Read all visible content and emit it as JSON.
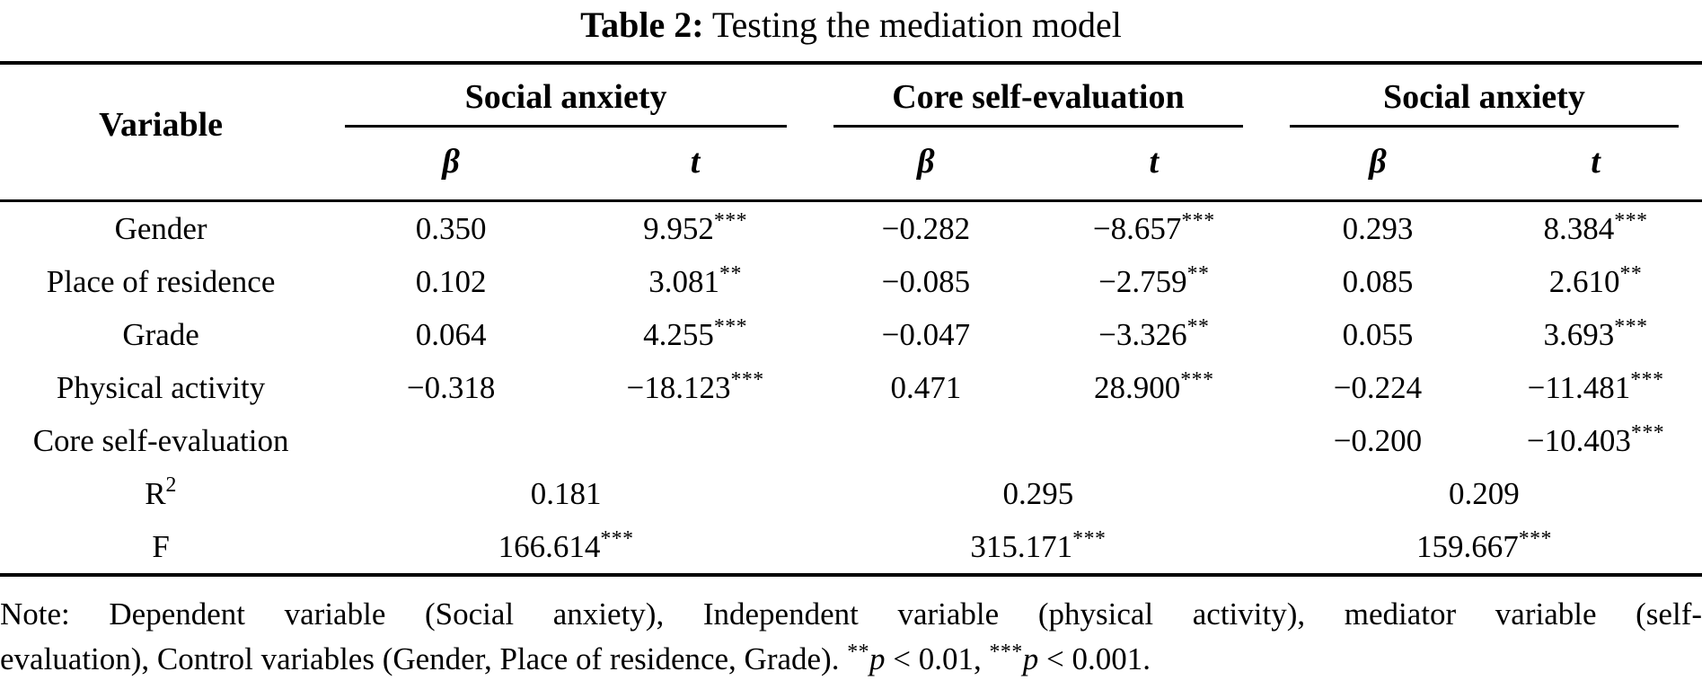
{
  "title": {
    "label": "Table 2:",
    "text": "Testing the mediation model"
  },
  "table": {
    "variable_header": "Variable",
    "groups": [
      {
        "label": "Social anxiety",
        "sub": [
          "β",
          "t"
        ]
      },
      {
        "label": "Core self-evaluation",
        "sub": [
          "β",
          "t"
        ]
      },
      {
        "label": "Social anxiety",
        "sub": [
          "β",
          "t"
        ]
      }
    ],
    "rows": [
      {
        "label": "Gender",
        "cells": [
          {
            "v": "0.350"
          },
          {
            "v": "9.952",
            "sup": "***"
          },
          {
            "v": "−0.282"
          },
          {
            "v": "−8.657",
            "sup": "***"
          },
          {
            "v": "0.293"
          },
          {
            "v": "8.384",
            "sup": "***"
          }
        ]
      },
      {
        "label": "Place of residence",
        "cells": [
          {
            "v": "0.102"
          },
          {
            "v": "3.081",
            "sup": "**"
          },
          {
            "v": "−0.085"
          },
          {
            "v": "−2.759",
            "sup": "**"
          },
          {
            "v": "0.085"
          },
          {
            "v": "2.610",
            "sup": "**"
          }
        ]
      },
      {
        "label": "Grade",
        "cells": [
          {
            "v": "0.064"
          },
          {
            "v": "4.255",
            "sup": "***"
          },
          {
            "v": "−0.047"
          },
          {
            "v": "−3.326",
            "sup": "**"
          },
          {
            "v": "0.055"
          },
          {
            "v": "3.693",
            "sup": "***"
          }
        ]
      },
      {
        "label": "Physical activity",
        "cells": [
          {
            "v": "−0.318"
          },
          {
            "v": "−18.123",
            "sup": "***"
          },
          {
            "v": "0.471"
          },
          {
            "v": "28.900",
            "sup": "***"
          },
          {
            "v": "−0.224"
          },
          {
            "v": "−11.481",
            "sup": "***"
          }
        ]
      },
      {
        "label": "Core self-evaluation",
        "cells": [
          {
            "v": ""
          },
          {
            "v": ""
          },
          {
            "v": ""
          },
          {
            "v": ""
          },
          {
            "v": "−0.200"
          },
          {
            "v": "−10.403",
            "sup": "***"
          }
        ]
      },
      {
        "label": "R",
        "label_sup": "2",
        "span_cells": [
          {
            "v": "0.181"
          },
          {
            "v": "0.295"
          },
          {
            "v": "0.209"
          }
        ]
      },
      {
        "label": "F",
        "span_cells": [
          {
            "v": "166.614",
            "sup": "***"
          },
          {
            "v": "315.171",
            "sup": "***"
          },
          {
            "v": "159.667",
            "sup": "***"
          }
        ]
      }
    ]
  },
  "note": {
    "line1": "Note: Dependent variable (Social anxiety), Independent variable (physical activity), mediator variable (self-",
    "line2": "evaluation), Control variables (Gender, Place of residence, Grade).",
    "sig": [
      {
        "stars": "**",
        "p": "p",
        "rest": " < 0.01,"
      },
      {
        "stars": "***",
        "p": "p",
        "rest": " < 0.001."
      }
    ]
  }
}
